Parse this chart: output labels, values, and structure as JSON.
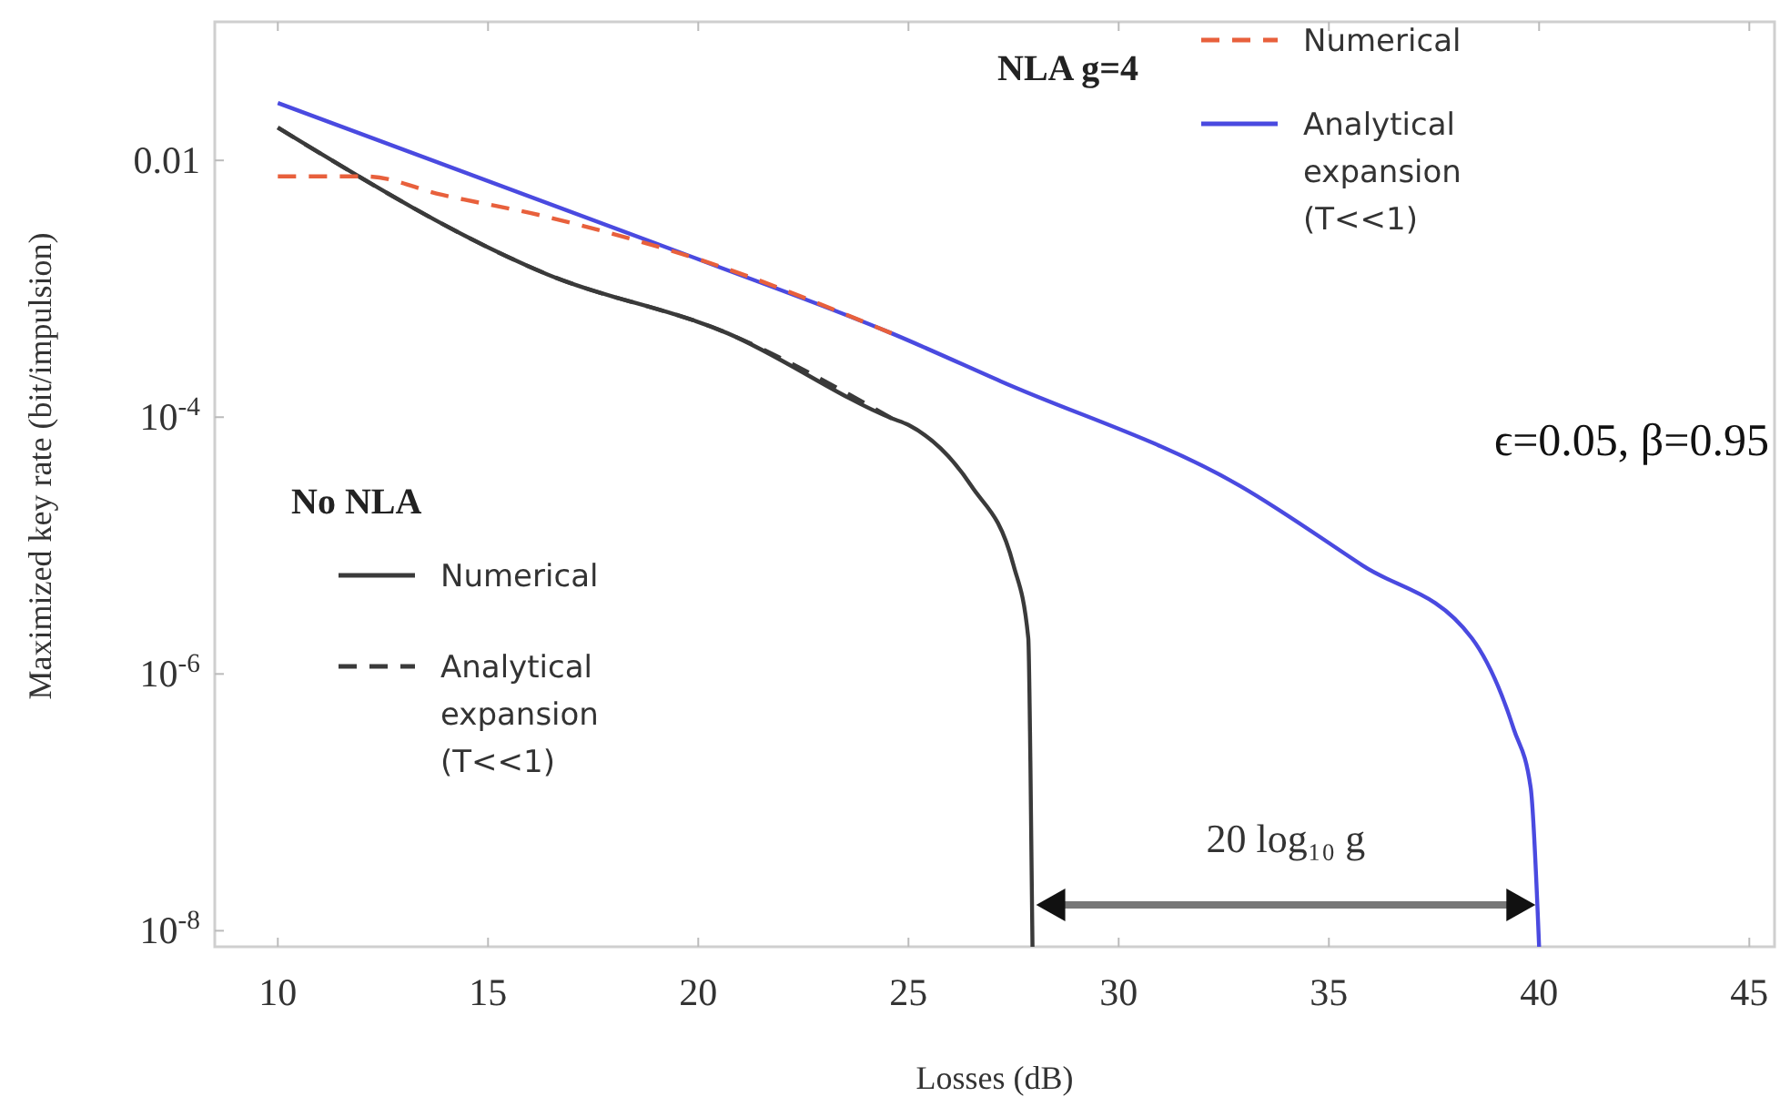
{
  "chart_data": {
    "type": "line",
    "xlabel": "Losses (dB)",
    "ylabel": "Maximized key rate (bit/impulsion)",
    "log": "y",
    "legend": "top",
    "xlim": [
      8.5,
      45.6
    ],
    "ylim": [
      7.5e-09,
      0.12
    ],
    "xticks": [
      10,
      15,
      20,
      25,
      30,
      35,
      40,
      45
    ],
    "yticks": [
      0.01,
      {
        "value": 0.0001,
        "label": "10$^{-4}$"
      },
      {
        "value": 1e-06,
        "label": "10$^{-6}$"
      },
      {
        "value": 1e-08,
        "label": "10$^{-8}$"
      }
    ],
    "series": [
      {
        "name": "Numerical",
        "color": "#3a3a3a",
        "line_style": "solid",
        "x": [
          10,
          16.4,
          20.7,
          24.6,
          25,
          26.5,
          27.5,
          27.85,
          27.9,
          27.95
        ],
        "values": [
          0.018,
          0.0013,
          0.00045,
          9.8e-05,
          8.7e-05,
          2.9e-05,
          7e-06,
          1.9e-06,
          2.1e-07,
          7.5e-09
        ]
      },
      {
        "name": "Analytical expansion (T<<1)",
        "color": "#3a3a3a",
        "line_style": "dashed",
        "x": [
          10,
          16.4,
          20.7,
          24.6
        ],
        "values": [
          0.018,
          0.0013,
          0.00045,
          9.8e-05
        ]
      },
      {
        "name": "Numerical",
        "color": "#e8603c",
        "line_style": "dashed",
        "x": [
          10,
          12.1,
          13.9,
          16.3,
          18.3,
          20,
          24.6
        ],
        "values": [
          0.0075,
          0.0075,
          0.0054,
          0.0037,
          0.0025,
          0.0017,
          0.00045
        ]
      },
      {
        "name": "Analytical expansion (T<<1)",
        "color": "#4a4ae0",
        "line_style": "solid",
        "x": [
          10,
          20,
          24.6,
          27.2,
          32.9,
          35.8,
          38.4,
          39.4,
          39.8,
          40
        ],
        "values": [
          0.028,
          0.0017,
          0.00045,
          0.00019,
          2.9e-05,
          7e-06,
          1.9e-06,
          3.7e-07,
          1.3e-07,
          7.5e-09
        ]
      }
    ],
    "annotations": [
      "NLA g=4",
      "No NLA",
      "ϵ=0.05, β=0.95",
      "20 log₁₀ g"
    ]
  }
}
